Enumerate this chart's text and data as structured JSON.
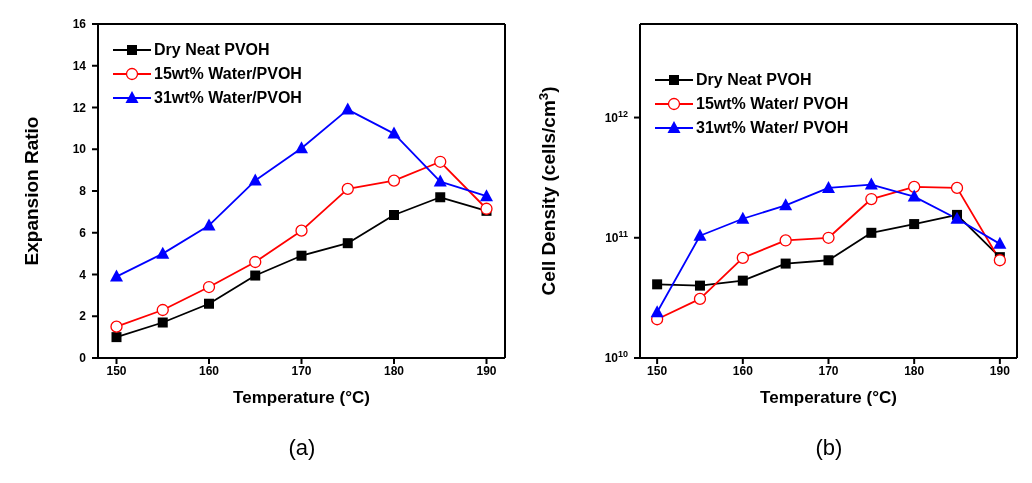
{
  "chart_data": [
    {
      "type": "line",
      "xlabel": "Temperature (°C)",
      "ylabel": "Expansion Ratio",
      "annotations": [
        "(a)"
      ],
      "x": [
        150,
        155,
        160,
        165,
        170,
        175,
        180,
        185,
        190
      ],
      "series": [
        {
          "name": "Dry Neat PVOH",
          "color": "#000000",
          "marker": "square",
          "values": [
            1.0,
            1.7,
            2.6,
            3.95,
            4.9,
            5.5,
            6.85,
            7.7,
            7.05
          ]
        },
        {
          "name": "15wt% Water/PVOH",
          "color": "#ff0000",
          "marker": "circle",
          "values": [
            1.5,
            2.3,
            3.4,
            4.6,
            6.1,
            8.1,
            8.5,
            9.4,
            7.15
          ]
        },
        {
          "name": "31wt% Water/PVOH",
          "color": "#0000ff",
          "marker": "triangle",
          "values": [
            3.9,
            5.0,
            6.35,
            8.5,
            10.05,
            11.9,
            10.75,
            8.45,
            7.75
          ]
        }
      ],
      "xlim": [
        148,
        192
      ],
      "xticks": [
        150,
        160,
        170,
        180,
        190
      ],
      "ylim": [
        0,
        16
      ],
      "yticks": [
        0,
        2,
        4,
        6,
        8,
        10,
        12,
        14,
        16
      ],
      "legend": "top left",
      "grid": false
    },
    {
      "type": "line",
      "xlabel": "Temperature (°C)",
      "ylabel": "Cell Density (cells/cm$^{3}$)",
      "annotations": [
        "(b)"
      ],
      "x": [
        150,
        155,
        160,
        165,
        170,
        175,
        180,
        185,
        190
      ],
      "series": [
        {
          "name": "Dry Neat PVOH",
          "color": "#000000",
          "marker": "square",
          "values": [
            41000000000.0,
            40000000000.0,
            44000000000.0,
            61000000000.0,
            65000000000.0,
            110000000000.0,
            130000000000.0,
            155000000000.0,
            69000000000.0
          ]
        },
        {
          "name": "15wt% Water/ PVOH",
          "color": "#ff0000",
          "marker": "circle",
          "values": [
            21000000000.0,
            31000000000.0,
            68000000000.0,
            95000000000.0,
            100000000000.0,
            210000000000.0,
            265000000000.0,
            260000000000.0,
            65000000000.0
          ]
        },
        {
          "name": "31wt% Water/ PVOH",
          "color": "#0000ff",
          "marker": "triangle",
          "values": [
            24000000000.0,
            104000000000.0,
            144000000000.0,
            186000000000.0,
            260000000000.0,
            277000000000.0,
            220000000000.0,
            144000000000.0,
            89000000000.0
          ]
        }
      ],
      "xlim": [
        148,
        192
      ],
      "xticks": [
        150,
        160,
        170,
        180,
        190
      ],
      "log": "y",
      "ylim": [
        10000000000.0,
        6000000000000.0
      ],
      "yticks": [
        {
          "value": 10000000000.0,
          "label": "10$^{10}$"
        },
        {
          "value": 100000000000.0,
          "label": "10$^{11}$"
        },
        {
          "value": 1000000000000.0,
          "label": "10$^{12}$"
        }
      ],
      "legend": "top left",
      "grid": false
    }
  ]
}
